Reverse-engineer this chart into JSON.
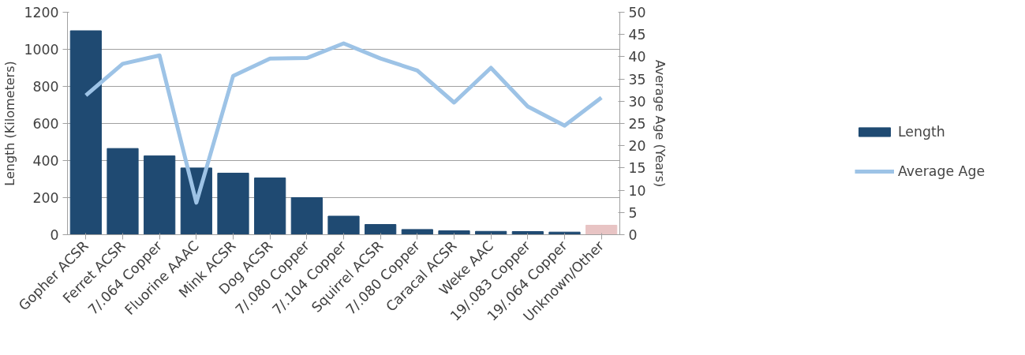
{
  "chart_data": {
    "type": "bar",
    "ylabel": "Length (Kilometers)",
    "y2label": "Average Age (Years)",
    "categories": [
      "Gopher ACSR",
      "Ferret ACSR",
      "7/.064 Copper",
      "Fluorine AAAC",
      "Mink ACSR",
      "Dog ACSR",
      "7/.080 Copper",
      "7/.104 Copper",
      "Squirrel ACSR",
      "7/.080 Copper",
      "Caracal ACSR",
      "Weke AAC",
      "19/.083 Copper",
      "19/.064 Copper",
      "Unknown/Other"
    ],
    "series": [
      {
        "name": "Length",
        "colors": [
          "#1f4a72",
          "#1f4a72",
          "#1f4a72",
          "#1f4a72",
          "#1f4a72",
          "#1f4a72",
          "#1f4a72",
          "#1f4a72",
          "#1f4a72",
          "#1f4a72",
          "#1f4a72",
          "#1f4a72",
          "#1f4a72",
          "#1f4a72",
          "#e8c4c4"
        ],
        "values": [
          1100,
          465,
          425,
          360,
          332,
          306,
          200,
          100,
          55,
          28,
          21,
          18,
          17,
          14,
          51
        ]
      },
      {
        "name": "Average Age",
        "type": "line",
        "axis": "y2",
        "color": "#9dc3e6",
        "values": [
          31.3,
          38.4,
          40.3,
          7.2,
          35.7,
          39.6,
          39.7,
          43,
          39.6,
          36.9,
          29.7,
          37.5,
          28.8,
          24.5,
          30.8
        ]
      }
    ],
    "ylim": [
      0,
      1200
    ],
    "yticks": [
      0,
      200,
      400,
      600,
      800,
      1000,
      1200
    ],
    "y2lim": [
      0,
      50
    ],
    "y2ticks": [
      0,
      5,
      10,
      15,
      20,
      25,
      30,
      35,
      40,
      45,
      50
    ],
    "grid": "y",
    "legend": "right"
  }
}
